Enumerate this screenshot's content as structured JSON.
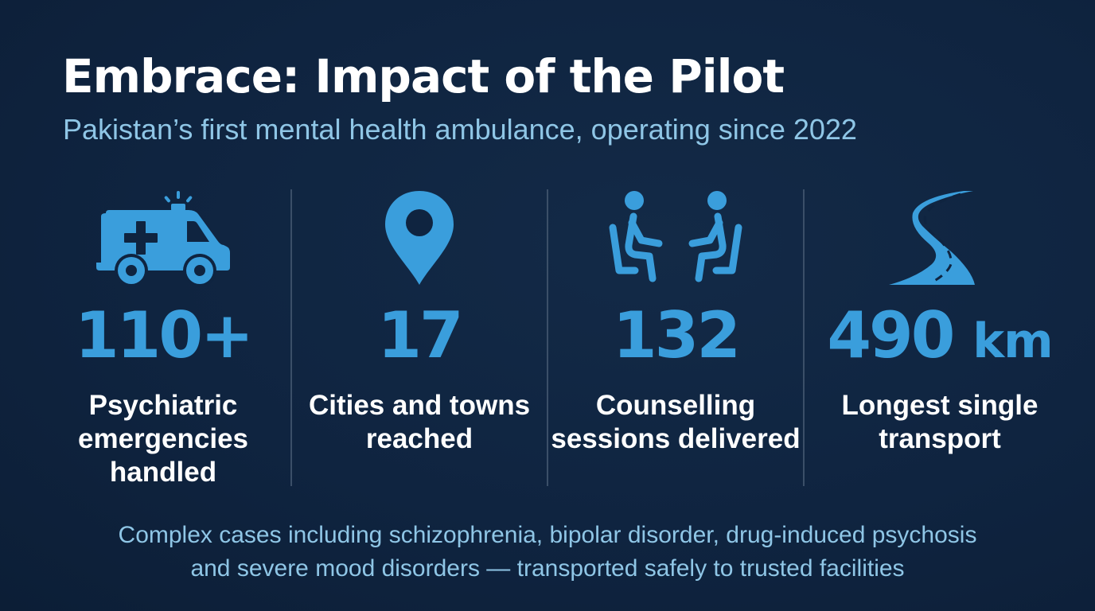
{
  "header": {
    "title": "Embrace: Impact of the Pilot",
    "subtitle": "Pakistan’s first mental health ambulance, operating since 2022"
  },
  "stats": [
    {
      "icon": "ambulance-icon",
      "value": "110+",
      "unit": "",
      "label": "Psychiatric emergencies handled"
    },
    {
      "icon": "location-pin-icon",
      "value": "17",
      "unit": "",
      "label": "Cities and towns reached"
    },
    {
      "icon": "counselling-icon",
      "value": "132",
      "unit": "",
      "label": "Counselling sessions delivered"
    },
    {
      "icon": "road-icon",
      "value": "490",
      "unit": "km",
      "label": "Longest single transport"
    }
  ],
  "footer": {
    "line1": "Complex cases including schizophrenia, bipolar disorder, drug-induced psychosis",
    "line2": "and severe mood disorders — transported safely to trusted facilities"
  },
  "colors": {
    "background": "#0f2440",
    "accent": "#3a9edc",
    "subtitle": "#8fc6e6",
    "divider": "#3b4f68"
  }
}
